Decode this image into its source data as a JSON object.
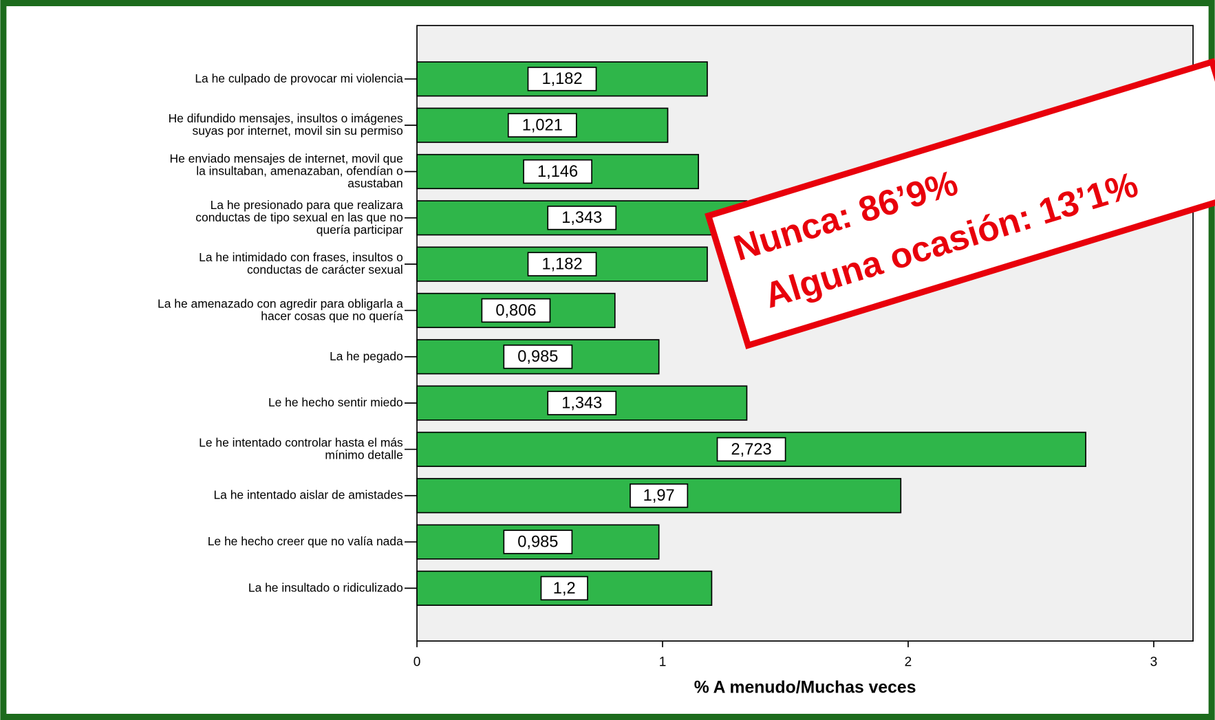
{
  "chart_data": {
    "type": "barh",
    "categories": [
      "La he culpado de provocar mi violencia",
      "He difundido mensajes, insultos o imágenes\nsuyas por internet, movil sin su permiso",
      "He enviado mensajes de internet, movil que\nla insultaban, amenazaban, ofendían o\nasustaban",
      "La he presionado para que realizara\nconductas de tipo sexual en las que no\nquería participar",
      "La he intimidado con frases, insultos o\nconductas de carácter  sexual",
      "La he amenazado con agredir para obligarla a\nhacer cosas que no quería",
      "La he pegado",
      "Le he hecho sentir miedo",
      "Le he intentado controlar hasta el más\nmínimo detalle",
      "La he intentado aislar de amistades",
      "Le he hecho creer que no valía nada",
      "La he insultado o ridiculizado"
    ],
    "values": [
      1.182,
      1.021,
      1.146,
      1.343,
      1.182,
      0.806,
      0.985,
      1.343,
      2.723,
      1.97,
      0.985,
      1.2
    ],
    "value_labels": [
      "1,182",
      "1,021",
      "1,146",
      "1,343",
      "1,182",
      "0,806",
      "0,985",
      "1,343",
      "2,723",
      "1,97",
      "0,985",
      "1,2"
    ],
    "color": "#2fb64a",
    "xlabel": "% A menudo/Muchas veces",
    "xlim": [
      0,
      3.16
    ],
    "xticks": [
      0,
      1,
      2,
      3
    ],
    "annotations": [
      "Nunca: 86’9%",
      "Alguna ocasión: 13’1%"
    ]
  }
}
